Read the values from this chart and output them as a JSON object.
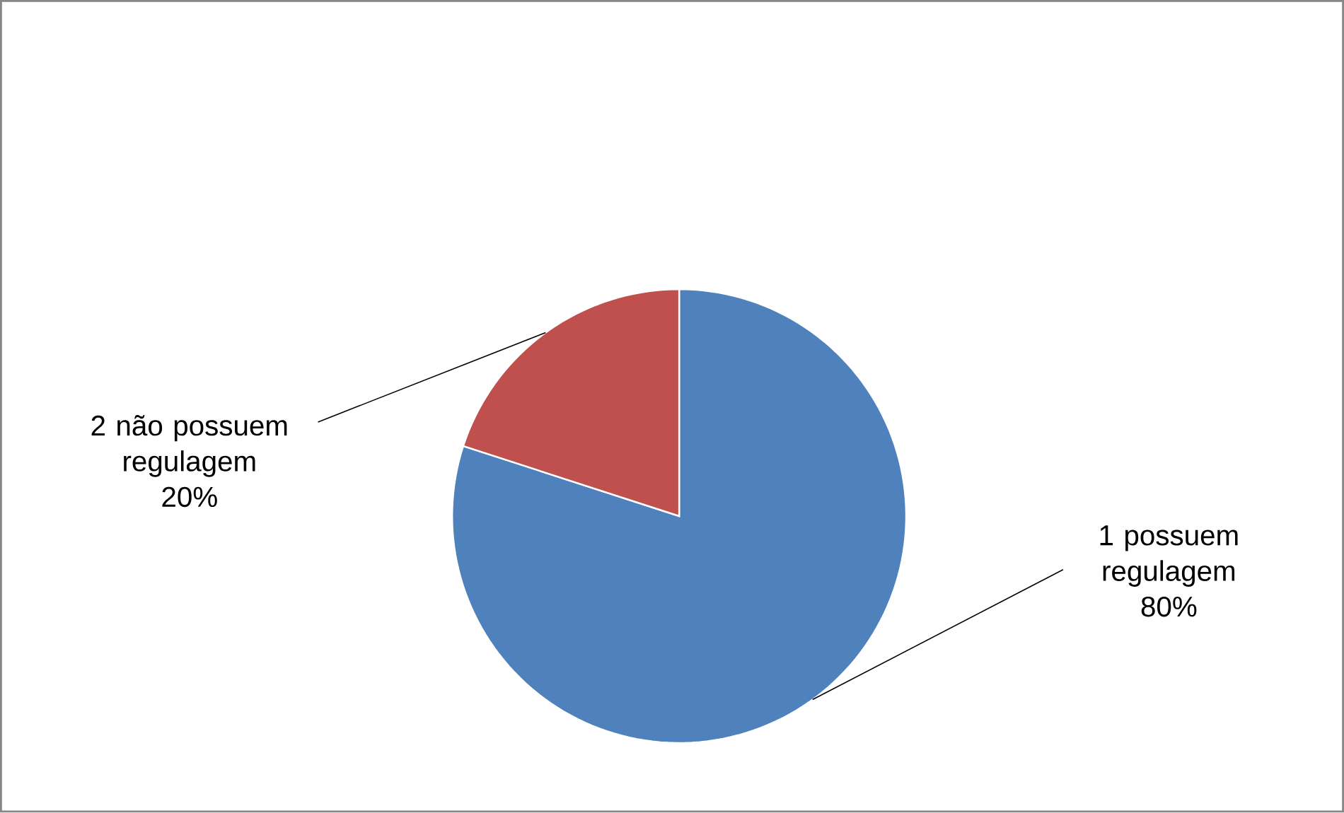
{
  "chart_data": {
    "type": "pie",
    "categories": [
      "1 possuem regulagem",
      "2 não possuem regulagem"
    ],
    "values": [
      80,
      20
    ],
    "colors": [
      "#4f81bd",
      "#c0504d"
    ],
    "value_labels": [
      "80%",
      "20%"
    ]
  }
}
